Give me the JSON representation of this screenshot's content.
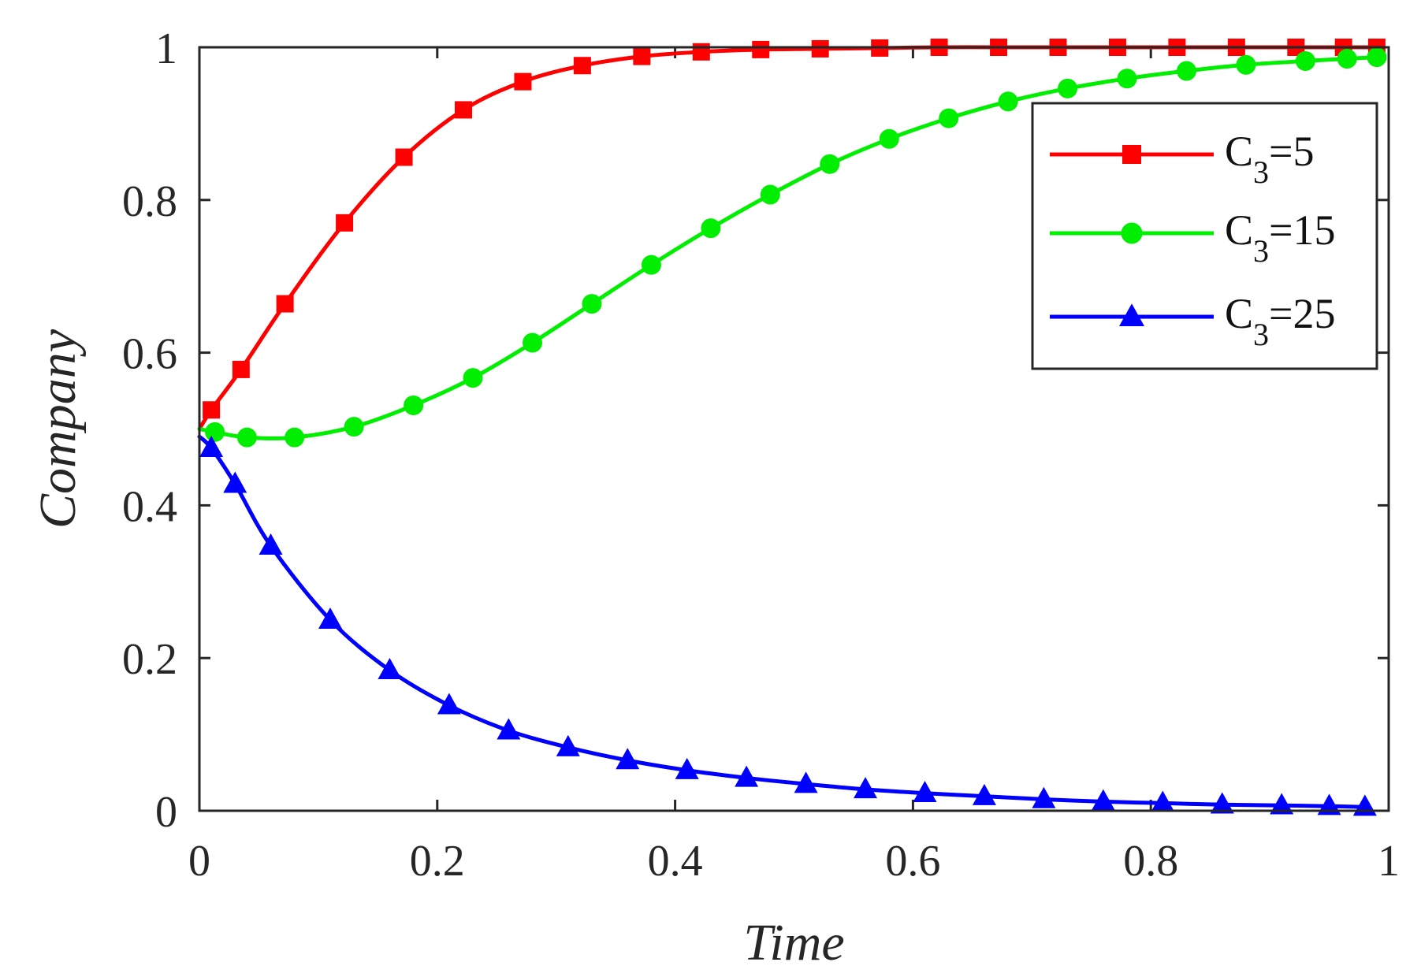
{
  "chart_data": {
    "type": "line",
    "title": "",
    "xlabel": "Time",
    "ylabel": "Company",
    "xlim": [
      0,
      1
    ],
    "ylim": [
      0,
      1
    ],
    "xticks": [
      "0",
      "0.2",
      "0.4",
      "0.6",
      "0.8",
      "1"
    ],
    "yticks": [
      "0",
      "0.2",
      "0.4",
      "0.6",
      "0.8",
      "1"
    ],
    "grid": false,
    "legend_position": "top-right",
    "series": [
      {
        "name": "C3=5",
        "name_main": "C",
        "name_sub": "3",
        "name_rest": "=5",
        "color": "#ff0000",
        "marker": "square",
        "x": [
          0.0,
          0.01,
          0.035,
          0.072,
          0.122,
          0.172,
          0.222,
          0.272,
          0.322,
          0.372,
          0.422,
          0.472,
          0.522,
          0.572,
          0.622,
          0.672,
          0.722,
          0.772,
          0.822,
          0.872,
          0.922,
          0.962,
          0.99
        ],
        "y": [
          0.5,
          0.525,
          0.578,
          0.664,
          0.77,
          0.856,
          0.918,
          0.955,
          0.976,
          0.988,
          0.994,
          0.997,
          0.998,
          0.999,
          1.0,
          1.0,
          1.0,
          1.0,
          1.0,
          1.0,
          1.0,
          1.0,
          1.0
        ],
        "marker_x": [
          0.01,
          0.035,
          0.072,
          0.122,
          0.172,
          0.222,
          0.272,
          0.322,
          0.372,
          0.422,
          0.472,
          0.522,
          0.572,
          0.622,
          0.672,
          0.722,
          0.772,
          0.822,
          0.872,
          0.922,
          0.962,
          0.99
        ],
        "marker_y": [
          0.525,
          0.578,
          0.664,
          0.77,
          0.856,
          0.918,
          0.955,
          0.976,
          0.988,
          0.994,
          0.997,
          0.998,
          0.999,
          1.0,
          1.0,
          1.0,
          1.0,
          1.0,
          1.0,
          1.0,
          1.0,
          1.0
        ]
      },
      {
        "name": "C3=15",
        "name_main": "C",
        "name_sub": "3",
        "name_rest": "=15",
        "color": "#00ee00",
        "marker": "circle",
        "x": [
          0.0,
          0.013,
          0.04,
          0.08,
          0.13,
          0.18,
          0.23,
          0.28,
          0.33,
          0.38,
          0.43,
          0.48,
          0.53,
          0.58,
          0.63,
          0.68,
          0.73,
          0.78,
          0.83,
          0.88,
          0.93,
          0.965,
          0.99
        ],
        "y": [
          0.5,
          0.496,
          0.489,
          0.489,
          0.503,
          0.531,
          0.567,
          0.613,
          0.664,
          0.715,
          0.763,
          0.807,
          0.847,
          0.88,
          0.907,
          0.929,
          0.946,
          0.959,
          0.969,
          0.977,
          0.982,
          0.985,
          0.987
        ],
        "marker_x": [
          0.013,
          0.04,
          0.08,
          0.13,
          0.18,
          0.23,
          0.28,
          0.33,
          0.38,
          0.43,
          0.48,
          0.53,
          0.58,
          0.63,
          0.68,
          0.73,
          0.78,
          0.83,
          0.88,
          0.93,
          0.965,
          0.99
        ],
        "marker_y": [
          0.496,
          0.489,
          0.489,
          0.503,
          0.531,
          0.567,
          0.613,
          0.664,
          0.715,
          0.763,
          0.807,
          0.847,
          0.88,
          0.907,
          0.929,
          0.946,
          0.959,
          0.969,
          0.977,
          0.982,
          0.985,
          0.987
        ]
      },
      {
        "name": "C3=25",
        "name_main": "C",
        "name_sub": "3",
        "name_rest": "=25",
        "color": "#0000ff",
        "marker": "triangle",
        "x": [
          0.0,
          0.01,
          0.03,
          0.06,
          0.11,
          0.16,
          0.21,
          0.26,
          0.31,
          0.36,
          0.41,
          0.46,
          0.51,
          0.56,
          0.61,
          0.66,
          0.71,
          0.76,
          0.81,
          0.86,
          0.91,
          0.95,
          0.98
        ],
        "y": [
          0.49,
          0.475,
          0.428,
          0.347,
          0.25,
          0.184,
          0.138,
          0.105,
          0.083,
          0.066,
          0.053,
          0.043,
          0.035,
          0.028,
          0.023,
          0.019,
          0.015,
          0.012,
          0.01,
          0.008,
          0.007,
          0.006,
          0.005
        ],
        "marker_x": [
          0.01,
          0.03,
          0.06,
          0.11,
          0.16,
          0.21,
          0.26,
          0.31,
          0.36,
          0.41,
          0.46,
          0.51,
          0.56,
          0.61,
          0.66,
          0.71,
          0.76,
          0.81,
          0.86,
          0.91,
          0.95,
          0.98
        ],
        "marker_y": [
          0.475,
          0.428,
          0.347,
          0.25,
          0.184,
          0.138,
          0.105,
          0.083,
          0.066,
          0.053,
          0.043,
          0.035,
          0.028,
          0.023,
          0.019,
          0.015,
          0.012,
          0.01,
          0.008,
          0.007,
          0.006,
          0.005
        ]
      }
    ]
  }
}
